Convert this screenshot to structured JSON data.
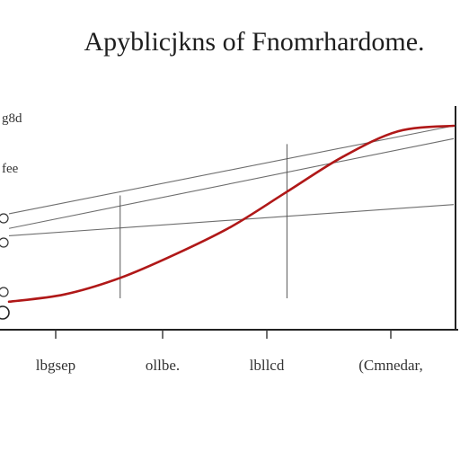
{
  "chart_data": {
    "type": "line",
    "title": "Apyblicjkns of Fnomrhardome.",
    "x_tick_labels": [
      "lbgsep",
      "ollbe.",
      "lbllcd",
      "(Cmnedar,"
    ],
    "y_tick_labels": [
      "g8d",
      "fee"
    ],
    "x": [
      0,
      1,
      2,
      3,
      4,
      5,
      6,
      7,
      8
    ],
    "series": [
      {
        "color": "#b01818",
        "values": [
          0.04,
          0.08,
          0.17,
          0.3,
          0.45,
          0.64,
          0.83,
          0.97,
          1.0
        ]
      }
    ],
    "guide_lines": [
      {
        "from": [
          0,
          0.52
        ],
        "to": [
          8,
          1.0
        ]
      },
      {
        "from": [
          0,
          0.44
        ],
        "to": [
          8,
          0.93
        ]
      },
      {
        "from": [
          0,
          0.4
        ],
        "to": [
          8,
          0.57
        ]
      }
    ],
    "xlim": [
      0,
      8
    ],
    "ylim": [
      0,
      1.0
    ],
    "grid": false
  }
}
